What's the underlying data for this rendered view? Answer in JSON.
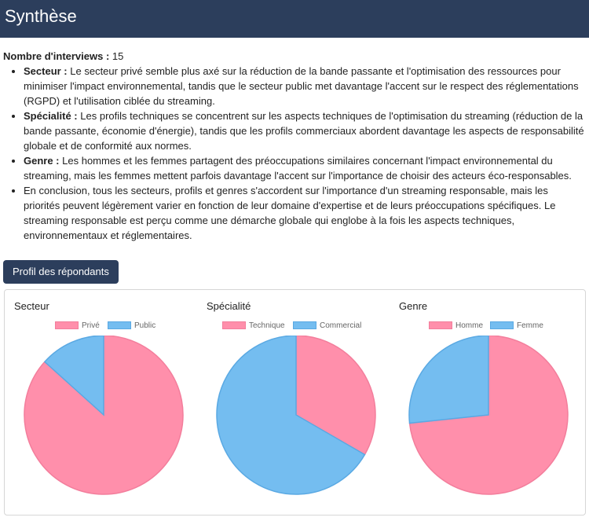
{
  "header": {
    "title": "Synthèse"
  },
  "summary": {
    "interviews_label": "Nombre d'interviews :",
    "interviews_value": "15",
    "bullets": [
      {
        "label": "Secteur :",
        "text": "Le secteur privé semble plus axé sur la réduction de la bande passante et l'optimisation des ressources pour minimiser l'impact environnemental, tandis que le secteur public met davantage l'accent sur le respect des réglementations (RGPD) et l'utilisation ciblée du streaming."
      },
      {
        "label": "Spécialité :",
        "text": "Les profils techniques se concentrent sur les aspects techniques de l'optimisation du streaming (réduction de la bande passante, économie d'énergie), tandis que les profils commerciaux abordent davantage les aspects de responsabilité globale et de conformité aux normes."
      },
      {
        "label": "Genre :",
        "text": "Les hommes et les femmes partagent des préoccupations similaires concernant l'impact environnemental du streaming, mais les femmes mettent parfois davantage l'accent sur l'importance de choisir des acteurs éco-responsables."
      },
      {
        "label": "",
        "text": "En conclusion, tous les secteurs, profils et genres s'accordent sur l'importance d'un streaming responsable, mais les priorités peuvent légèrement varier en fonction de leur domaine d'expertise et de leurs préoccupations spécifiques. Le streaming responsable est perçu comme une démarche globale qui englobe à la fois les aspects techniques, environnementaux et réglementaires."
      }
    ]
  },
  "profile_button": {
    "label": "Profil des répondants"
  },
  "colors": {
    "pink": "#ff8fab",
    "pink_border": "#f37e9c",
    "blue": "#74bdf0",
    "blue_border": "#5aa9e3"
  },
  "chart_data": [
    {
      "type": "pie",
      "title": "Secteur",
      "labels": [
        "Privé",
        "Public"
      ],
      "values": [
        13,
        2
      ]
    },
    {
      "type": "pie",
      "title": "Spécialité",
      "labels": [
        "Technique",
        "Commercial"
      ],
      "values": [
        5,
        10
      ]
    },
    {
      "type": "pie",
      "title": "Genre",
      "labels": [
        "Homme",
        "Femme"
      ],
      "values": [
        11,
        4
      ]
    }
  ]
}
